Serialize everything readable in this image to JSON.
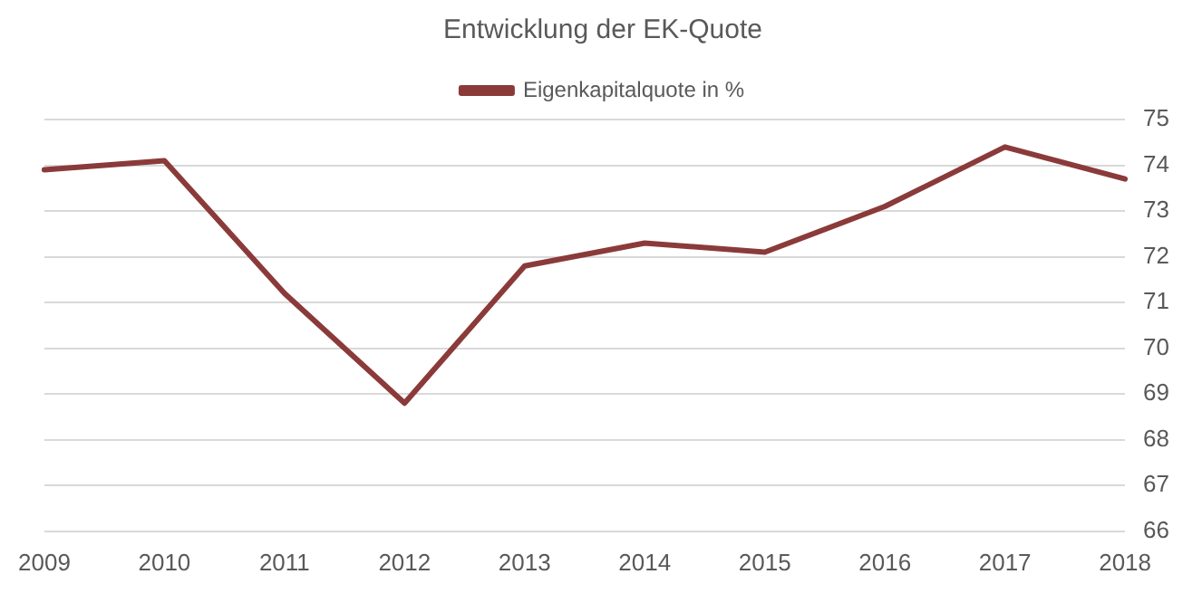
{
  "chart_data": {
    "type": "line",
    "title": "Entwicklung der EK-Quote",
    "categories": [
      "2009",
      "2010",
      "2011",
      "2012",
      "2013",
      "2014",
      "2015",
      "2016",
      "2017",
      "2018"
    ],
    "series": [
      {
        "name": "Eigenkapitalquote in %",
        "color": "#8b3a3a",
        "values": [
          73.9,
          74.1,
          71.2,
          68.8,
          71.8,
          72.3,
          72.1,
          73.1,
          74.4,
          73.7
        ]
      }
    ],
    "ylim": [
      66,
      75
    ],
    "yticks": [
      66,
      67,
      68,
      69,
      70,
      71,
      72,
      73,
      74,
      75
    ],
    "grid": "y",
    "legend": "top",
    "marker": "none"
  }
}
